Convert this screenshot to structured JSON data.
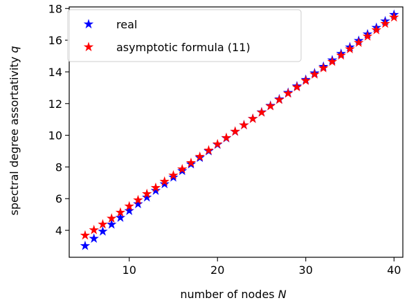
{
  "chart_data": {
    "type": "scatter",
    "xlabel_text": "number of nodes ",
    "xlabel_symbol": "N",
    "ylabel_text": "spectral degree assortativity ",
    "ylabel_symbol": "q",
    "xlim": [
      3.2,
      41.0
    ],
    "ylim": [
      2.3,
      18.1
    ],
    "x_ticks": [
      10,
      20,
      30,
      40
    ],
    "y_ticks": [
      4,
      6,
      8,
      10,
      12,
      14,
      16,
      18
    ],
    "legend_position": "upper-left",
    "grid": false,
    "marker": "star",
    "series": [
      {
        "name": "real",
        "color": "#0000ff",
        "x": [
          5,
          6,
          7,
          8,
          9,
          10,
          11,
          12,
          13,
          14,
          15,
          16,
          17,
          18,
          19,
          20,
          21,
          22,
          23,
          24,
          25,
          26,
          27,
          28,
          29,
          30,
          31,
          32,
          33,
          34,
          35,
          36,
          37,
          38,
          39,
          40
        ],
        "y": [
          3.02,
          3.48,
          3.93,
          4.37,
          4.8,
          5.23,
          5.66,
          6.08,
          6.5,
          6.92,
          7.34,
          7.75,
          8.17,
          8.58,
          9.0,
          9.41,
          9.82,
          10.23,
          10.64,
          11.05,
          11.46,
          11.87,
          12.28,
          12.69,
          13.1,
          13.51,
          13.92,
          14.33,
          14.74,
          15.15,
          15.56,
          15.97,
          16.38,
          16.79,
          17.2,
          17.61
        ]
      },
      {
        "name": "asymptotic formula (11)",
        "color": "#ff0000",
        "x": [
          5,
          6,
          7,
          8,
          9,
          10,
          11,
          12,
          13,
          14,
          15,
          16,
          17,
          18,
          19,
          20,
          21,
          22,
          23,
          24,
          25,
          26,
          27,
          28,
          29,
          30,
          31,
          32,
          33,
          34,
          35,
          36,
          37,
          38,
          39,
          40
        ],
        "y": [
          3.68,
          4.02,
          4.38,
          4.75,
          5.13,
          5.52,
          5.91,
          6.3,
          6.69,
          7.08,
          7.47,
          7.86,
          8.26,
          8.65,
          9.05,
          9.44,
          9.84,
          10.24,
          10.64,
          11.04,
          11.44,
          11.84,
          12.24,
          12.64,
          13.04,
          13.44,
          13.84,
          14.24,
          14.64,
          15.04,
          15.44,
          15.84,
          16.24,
          16.64,
          17.04,
          17.44
        ]
      }
    ]
  }
}
